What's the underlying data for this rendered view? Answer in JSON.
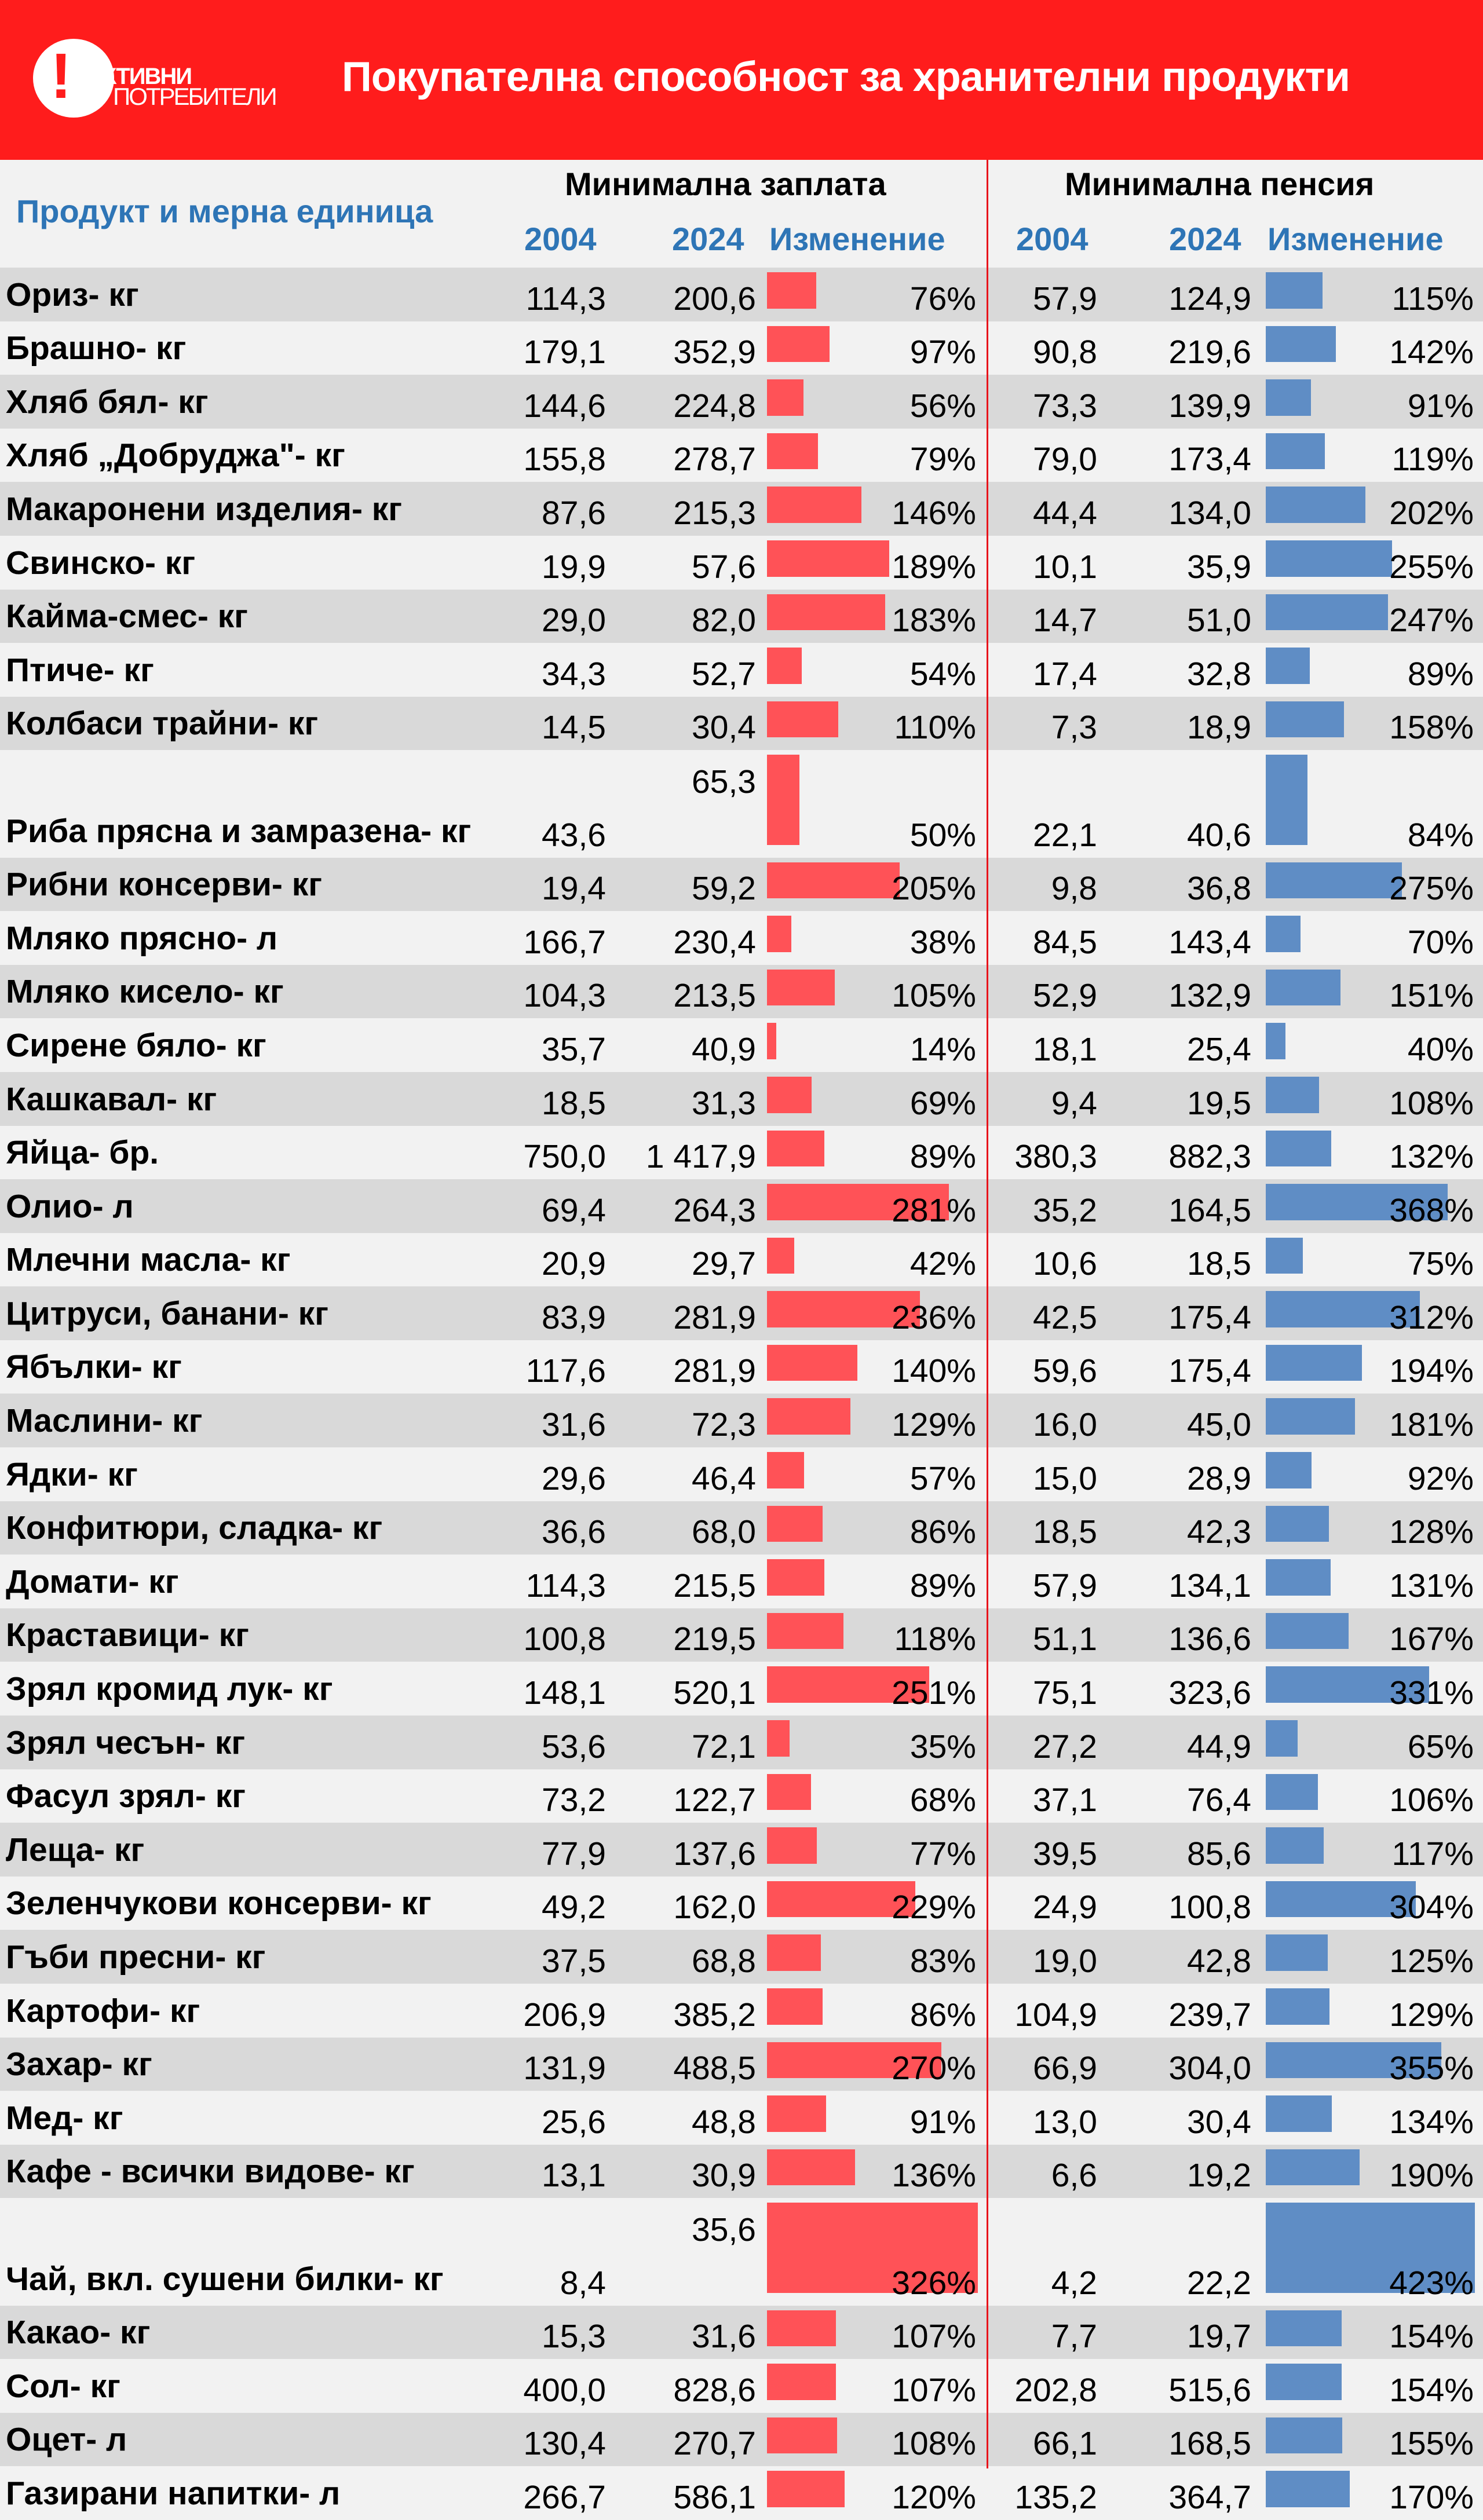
{
  "header": {
    "logo_text_line1": "АКТИВНИ",
    "logo_text_line2": "ПОТРЕБИТЕЛИ",
    "title": "Покупателна способност за хранителни продукти",
    "product_column": "Продукт и мерна единица",
    "group_salary": "Минимална заплата",
    "group_pension": "Минимална пенсия",
    "year_2004": "2004",
    "year_2024": "2024",
    "change": "Изменение"
  },
  "colors": {
    "banner": "#ff1c1c",
    "salary_bar": "#ff5257",
    "pension_bar": "#5f8dc5",
    "header_text": "#2e75b6",
    "row_odd": "#d9d9d9",
    "row_even": "#f2f2f2"
  },
  "chart_data": {
    "type": "table",
    "title": "Покупателна способност за хранителни продукти",
    "columns": [
      "Продукт и мерна единица",
      "Минимална заплата 2004",
      "Минимална заплата 2024",
      "Минимална заплата Изменение",
      "Минимална пенсия 2004",
      "Минимална пенсия 2024",
      "Минимална пенсия Изменение"
    ],
    "rows": [
      [
        "Ориз- кг",
        "114,3",
        "200,6",
        "76%",
        "57,9",
        "124,9",
        "115%"
      ],
      [
        "Брашно- кг",
        "179,1",
        "352,9",
        "97%",
        "90,8",
        "219,6",
        "142%"
      ],
      [
        "Хляб бял- кг",
        "144,6",
        "224,8",
        "56%",
        "73,3",
        "139,9",
        "91%"
      ],
      [
        "Хляб „Добруджа\"- кг",
        "155,8",
        "278,7",
        "79%",
        "79,0",
        "173,4",
        "119%"
      ],
      [
        "Макаронени изделия- кг",
        "87,6",
        "215,3",
        "146%",
        "44,4",
        "134,0",
        "202%"
      ],
      [
        "Свинско- кг",
        "19,9",
        "57,6",
        "189%",
        "10,1",
        "35,9",
        "255%"
      ],
      [
        "Кайма-смес- кг",
        "29,0",
        "82,0",
        "183%",
        "14,7",
        "51,0",
        "247%"
      ],
      [
        "Птиче- кг",
        "34,3",
        "52,7",
        "54%",
        "17,4",
        "32,8",
        "89%"
      ],
      [
        "Колбаси трайни- кг",
        "14,5",
        "30,4",
        "110%",
        "7,3",
        "18,9",
        "158%"
      ],
      [
        "Риба прясна и замразена- кг",
        "43,6",
        "65,3",
        "50%",
        "22,1",
        "40,6",
        "84%"
      ],
      [
        "Рибни консерви- кг",
        "19,4",
        "59,2",
        "205%",
        "9,8",
        "36,8",
        "275%"
      ],
      [
        "Мляко прясно- л",
        "166,7",
        "230,4",
        "38%",
        "84,5",
        "143,4",
        "70%"
      ],
      [
        "Мляко кисело- кг",
        "104,3",
        "213,5",
        "105%",
        "52,9",
        "132,9",
        "151%"
      ],
      [
        "Сирене бяло- кг",
        "35,7",
        "40,9",
        "14%",
        "18,1",
        "25,4",
        "40%"
      ],
      [
        "Кашкавал- кг",
        "18,5",
        "31,3",
        "69%",
        "9,4",
        "19,5",
        "108%"
      ],
      [
        "Яйца- бр.",
        "750,0",
        "1 417,9",
        "89%",
        "380,3",
        "882,3",
        "132%"
      ],
      [
        "Олио- л",
        "69,4",
        "264,3",
        "281%",
        "35,2",
        "164,5",
        "368%"
      ],
      [
        "Млечни масла- кг",
        "20,9",
        "29,7",
        "42%",
        "10,6",
        "18,5",
        "75%"
      ],
      [
        "Цитруси, банани- кг",
        "83,9",
        "281,9",
        "236%",
        "42,5",
        "175,4",
        "312%"
      ],
      [
        "Ябълки- кг",
        "117,6",
        "281,9",
        "140%",
        "59,6",
        "175,4",
        "194%"
      ],
      [
        "Маслини- кг",
        "31,6",
        "72,3",
        "129%",
        "16,0",
        "45,0",
        "181%"
      ],
      [
        "Ядки- кг",
        "29,6",
        "46,4",
        "57%",
        "15,0",
        "28,9",
        "92%"
      ],
      [
        "Конфитюри, сладка- кг",
        "36,6",
        "68,0",
        "86%",
        "18,5",
        "42,3",
        "128%"
      ],
      [
        "Домати- кг",
        "114,3",
        "215,5",
        "89%",
        "57,9",
        "134,1",
        "131%"
      ],
      [
        "Краставици- кг",
        "100,8",
        "219,5",
        "118%",
        "51,1",
        "136,6",
        "167%"
      ],
      [
        "Зрял кромид лук- кг",
        "148,1",
        "520,1",
        "251%",
        "75,1",
        "323,6",
        "331%"
      ],
      [
        "Зрял чесън- кг",
        "53,6",
        "72,1",
        "35%",
        "27,2",
        "44,9",
        "65%"
      ],
      [
        "Фасул зрял- кг",
        "73,2",
        "122,7",
        "68%",
        "37,1",
        "76,4",
        "106%"
      ],
      [
        "Леща- кг",
        "77,9",
        "137,6",
        "77%",
        "39,5",
        "85,6",
        "117%"
      ],
      [
        "Зеленчукови консерви- кг",
        "49,2",
        "162,0",
        "229%",
        "24,9",
        "100,8",
        "304%"
      ],
      [
        "Гъби пресни- кг",
        "37,5",
        "68,8",
        "83%",
        "19,0",
        "42,8",
        "125%"
      ],
      [
        "Картофи- кг",
        "206,9",
        "385,2",
        "86%",
        "104,9",
        "239,7",
        "129%"
      ],
      [
        "Захар- кг",
        "131,9",
        "488,5",
        "270%",
        "66,9",
        "304,0",
        "355%"
      ],
      [
        "Мед- кг",
        "25,6",
        "48,8",
        "91%",
        "13,0",
        "30,4",
        "134%"
      ],
      [
        "Кафе - всички видове- кг",
        "13,1",
        "30,9",
        "136%",
        "6,6",
        "19,2",
        "190%"
      ],
      [
        "Чай, вкл. сушени билки- кг",
        "8,4",
        "35,6",
        "326%",
        "4,2",
        "22,2",
        "423%"
      ],
      [
        "Какао- кг",
        "15,3",
        "31,6",
        "107%",
        "7,7",
        "19,7",
        "154%"
      ],
      [
        "Сол- кг",
        "400,0",
        "828,6",
        "107%",
        "202,8",
        "515,6",
        "154%"
      ],
      [
        "Оцет- л",
        "130,4",
        "270,7",
        "108%",
        "66,1",
        "168,5",
        "155%"
      ],
      [
        "Газирани напитки- л",
        "266,7",
        "586,1",
        "120%",
        "135,2",
        "364,7",
        "170%"
      ]
    ]
  }
}
